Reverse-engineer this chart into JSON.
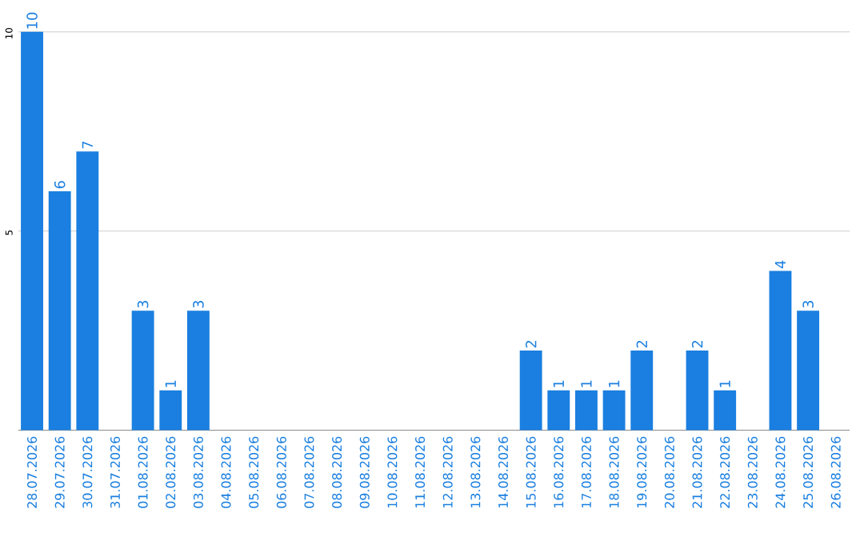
{
  "chart_data": {
    "type": "bar",
    "categories": [
      "28.07.2026",
      "29.07.2026",
      "30.07.2026",
      "31.07.2026",
      "01.08.2026",
      "02.08.2026",
      "03.08.2026",
      "04.08.2026",
      "05.08.2026",
      "06.08.2026",
      "07.08.2026",
      "08.08.2026",
      "09.08.2026",
      "10.08.2026",
      "11.08.2026",
      "12.08.2026",
      "13.08.2026",
      "14.08.2026",
      "15.08.2026",
      "16.08.2026",
      "17.08.2026",
      "18.08.2026",
      "19.08.2026",
      "20.08.2026",
      "21.08.2026",
      "22.08.2026",
      "23.08.2026",
      "24.08.2026",
      "25.08.2026",
      "26.08.2026"
    ],
    "values": [
      10,
      6,
      7,
      0,
      3,
      1,
      3,
      0,
      0,
      0,
      0,
      0,
      0,
      0,
      0,
      0,
      0,
      0,
      2,
      1,
      1,
      1,
      2,
      0,
      2,
      1,
      0,
      4,
      3,
      0
    ],
    "value_labels": [
      "10",
      "6",
      "7",
      null,
      "3",
      "1",
      "3",
      null,
      null,
      null,
      null,
      null,
      null,
      null,
      null,
      null,
      null,
      null,
      "2",
      "1",
      "1",
      "1",
      "2",
      null,
      "2",
      "1",
      null,
      "4",
      "3",
      null
    ],
    "color": "#1a7fe0",
    "ylim": [
      0,
      10
    ],
    "yticks": [
      5,
      10
    ],
    "grid": "y"
  }
}
